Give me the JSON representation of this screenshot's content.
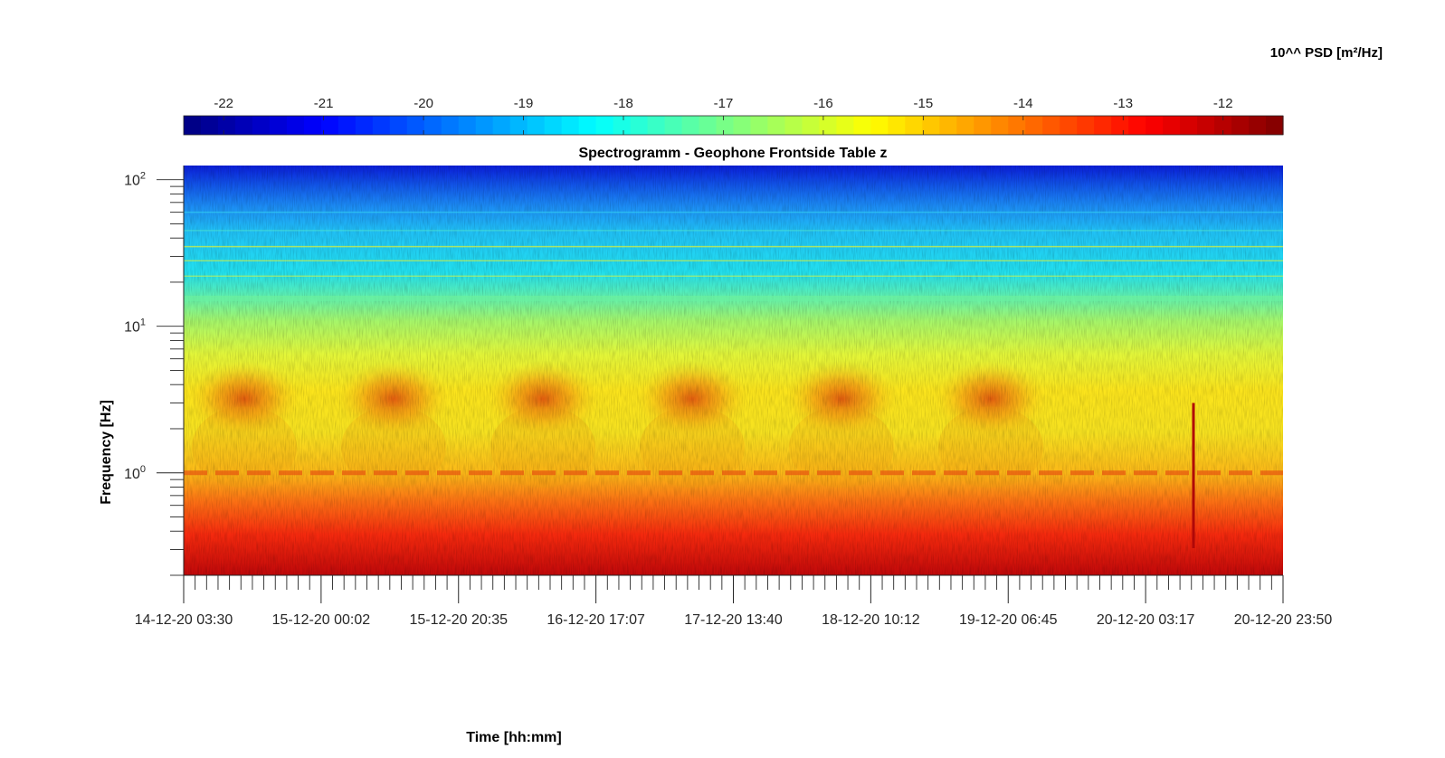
{
  "chart_data": {
    "type": "heatmap",
    "title": "Spectrogramm - Geophone Frontside Table z",
    "xlabel": "Time [hh:mm]",
    "ylabel": "Frequency [Hz]",
    "colorbar": {
      "label": "10^^ PSD [m²/Hz]",
      "ticks": [
        "-22",
        "-21",
        "-20",
        "-19",
        "-18",
        "-17",
        "-16",
        "-15",
        "-14",
        "-13",
        "-12"
      ],
      "tick_values": [
        -22,
        -21,
        -20,
        -19,
        -18,
        -17,
        -16,
        -15,
        -14,
        -13,
        -12
      ],
      "range": [
        -22.4,
        -11.4
      ],
      "colormap": "jet"
    },
    "x_ticks": [
      "14-12-20 03:30",
      "15-12-20 00:02",
      "15-12-20 20:35",
      "16-12-20 17:07",
      "17-12-20 13:40",
      "18-12-20 10:12",
      "19-12-20 06:45",
      "20-12-20 03:17",
      "20-12-20 23:50"
    ],
    "xlim": [
      "14-12-20 03:30",
      "20-12-20 23:50"
    ],
    "y_scale": "log",
    "ylim": [
      0.2,
      125
    ],
    "y_ticks": [
      {
        "label": "10",
        "exp": "0",
        "value": 1
      },
      {
        "label": "10",
        "exp": "1",
        "value": 10
      },
      {
        "label": "10",
        "exp": "2",
        "value": 100
      }
    ],
    "series": [
      {
        "frequency_hz": 100,
        "psd_log10": -21.5
      },
      {
        "frequency_hz": 40,
        "psd_log10": -19.5
      },
      {
        "frequency_hz": 20,
        "psd_log10": -18.6
      },
      {
        "frequency_hz": 10,
        "psd_log10": -17.6
      },
      {
        "frequency_hz": 5,
        "psd_log10": -16.8
      },
      {
        "frequency_hz": 3,
        "psd_log10": -15.6
      },
      {
        "frequency_hz": 1.5,
        "psd_log10": -15.8
      },
      {
        "frequency_hz": 0.8,
        "psd_log10": -14.5
      },
      {
        "frequency_hz": 0.4,
        "psd_log10": -13.5
      },
      {
        "frequency_hz": 0.2,
        "psd_log10": -12.8
      }
    ]
  }
}
